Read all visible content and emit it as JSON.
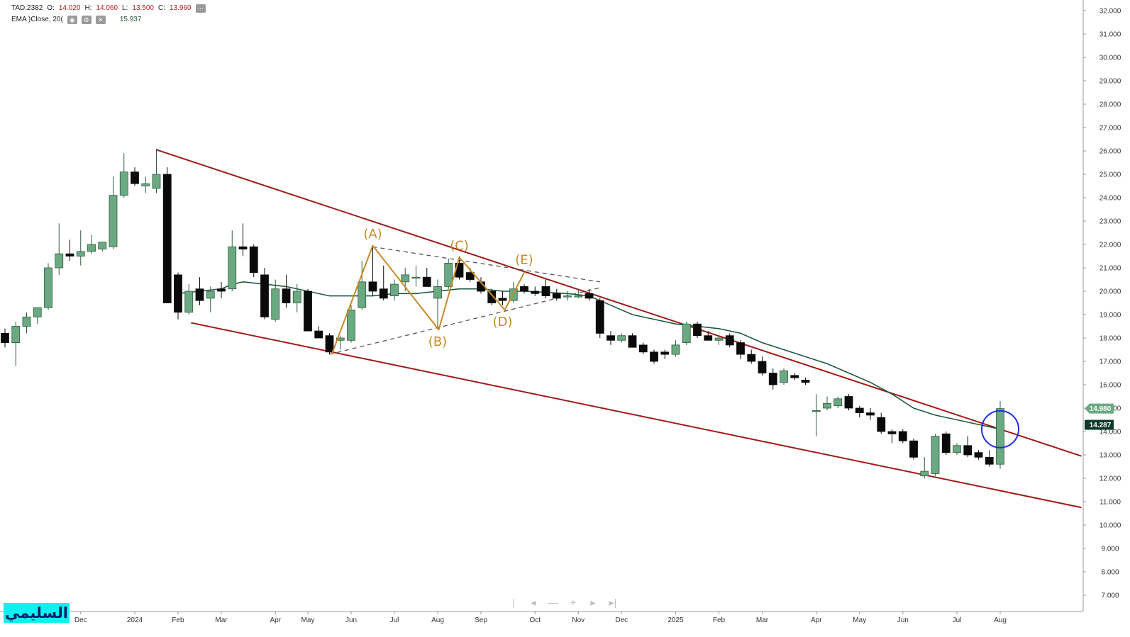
{
  "legend": {
    "symbol": "TAD.2382",
    "open_label": "O:",
    "open": "14.020",
    "high_label": "H:",
    "high": "14.060",
    "low_label": "L:",
    "low": "13.500",
    "close_label": "C:",
    "close": "13.960",
    "ema_label": "EMA )Close, 20(",
    "ema_value": "15.937",
    "more_icon": "ellipsis-icon",
    "eye_icon": "eye-icon",
    "settings_icon": "gear-icon",
    "close_icon": "close-icon"
  },
  "brand_text": "السليمي",
  "nav_icons": [
    "first-page-icon",
    "prev-icon",
    "zoom-out-icon",
    "zoom-in-icon",
    "next-icon",
    "last-page-icon"
  ],
  "colors": {
    "up": "#6aa981",
    "up_border": "#2f5a40",
    "down": "#0a0a0a",
    "ema": "#1e5a3c",
    "trendline": "#a11a1a",
    "pattern": "#c88a26",
    "dashed": "#555555",
    "circle": "#1f2de6"
  },
  "chart_data": {
    "type": "candlestick",
    "title": "",
    "xlabel": "",
    "ylabel": "",
    "ylim": [
      6.4,
      32.3
    ],
    "y_ticks": [
      "32.000",
      "31.000",
      "30.000",
      "29.000",
      "28.000",
      "27.000",
      "26.000",
      "25.000",
      "24.000",
      "23.000",
      "22.000",
      "21.000",
      "20.000",
      "19.000",
      "18.000",
      "17.000",
      "16.000",
      "15.000",
      "14.000",
      "13.000",
      "12.000",
      "11.000",
      "10.000",
      "9.000",
      "8.000",
      "7.000"
    ],
    "x_ticks": [
      {
        "label": "Dec",
        "i": 7
      },
      {
        "label": "2024",
        "i": 12
      },
      {
        "label": "Feb",
        "i": 16
      },
      {
        "label": "Mar",
        "i": 20
      },
      {
        "label": "Apr",
        "i": 25
      },
      {
        "label": "May",
        "i": 28
      },
      {
        "label": "Jun",
        "i": 32
      },
      {
        "label": "Jul",
        "i": 36
      },
      {
        "label": "Aug",
        "i": 40
      },
      {
        "label": "Sep",
        "i": 44
      },
      {
        "label": "Oct",
        "i": 49
      },
      {
        "label": "Nov",
        "i": 53
      },
      {
        "label": "Dec",
        "i": 57
      },
      {
        "label": "2025",
        "i": 62
      },
      {
        "label": "Feb",
        "i": 66
      },
      {
        "label": "Mar",
        "i": 70
      },
      {
        "label": "Apr",
        "i": 75
      },
      {
        "label": "May",
        "i": 79
      },
      {
        "label": "Jun",
        "i": 83
      },
      {
        "label": "Jul",
        "i": 88
      },
      {
        "label": "Aug",
        "i": 92
      }
    ],
    "candles": [
      {
        "i": 0,
        "o": 18.2,
        "h": 18.4,
        "l": 17.6,
        "c": 17.8
      },
      {
        "i": 1,
        "o": 17.8,
        "h": 18.7,
        "l": 16.8,
        "c": 18.5
      },
      {
        "i": 2,
        "o": 18.5,
        "h": 19.1,
        "l": 18.2,
        "c": 18.9
      },
      {
        "i": 3,
        "o": 18.9,
        "h": 19.3,
        "l": 18.6,
        "c": 19.3
      },
      {
        "i": 4,
        "o": 19.3,
        "h": 21.2,
        "l": 19.2,
        "c": 21.0
      },
      {
        "i": 5,
        "o": 21.0,
        "h": 22.9,
        "l": 20.7,
        "c": 21.6
      },
      {
        "i": 6,
        "o": 21.6,
        "h": 22.2,
        "l": 21.3,
        "c": 21.5
      },
      {
        "i": 7,
        "o": 21.5,
        "h": 22.6,
        "l": 21.1,
        "c": 21.7
      },
      {
        "i": 8,
        "o": 21.7,
        "h": 22.4,
        "l": 21.6,
        "c": 22.0
      },
      {
        "i": 9,
        "o": 21.8,
        "h": 22.1,
        "l": 21.7,
        "c": 22.1
      },
      {
        "i": 10,
        "o": 21.9,
        "h": 24.9,
        "l": 21.8,
        "c": 24.1
      },
      {
        "i": 11,
        "o": 24.1,
        "h": 25.9,
        "l": 24.0,
        "c": 25.1
      },
      {
        "i": 12,
        "o": 25.1,
        "h": 25.3,
        "l": 24.5,
        "c": 24.6
      },
      {
        "i": 13,
        "o": 24.5,
        "h": 24.9,
        "l": 24.2,
        "c": 24.6
      },
      {
        "i": 14,
        "o": 24.4,
        "h": 26.1,
        "l": 24.2,
        "c": 25.0
      },
      {
        "i": 15,
        "o": 25.0,
        "h": 25.3,
        "l": 19.7,
        "c": 19.5
      },
      {
        "i": 16,
        "o": 20.7,
        "h": 20.8,
        "l": 18.8,
        "c": 19.1
      },
      {
        "i": 17,
        "o": 19.1,
        "h": 20.3,
        "l": 19.0,
        "c": 20.0
      },
      {
        "i": 18,
        "o": 20.1,
        "h": 20.6,
        "l": 19.4,
        "c": 19.6
      },
      {
        "i": 19,
        "o": 19.7,
        "h": 20.2,
        "l": 19.1,
        "c": 20.0
      },
      {
        "i": 20,
        "o": 20.1,
        "h": 20.4,
        "l": 19.7,
        "c": 20.0
      },
      {
        "i": 21,
        "o": 20.1,
        "h": 22.6,
        "l": 20.0,
        "c": 21.9
      },
      {
        "i": 22,
        "o": 21.9,
        "h": 22.9,
        "l": 21.5,
        "c": 21.8
      },
      {
        "i": 23,
        "o": 21.9,
        "h": 22.0,
        "l": 20.6,
        "c": 20.8
      },
      {
        "i": 24,
        "o": 20.7,
        "h": 21.0,
        "l": 18.8,
        "c": 18.9
      },
      {
        "i": 25,
        "o": 18.8,
        "h": 20.5,
        "l": 18.7,
        "c": 20.1
      },
      {
        "i": 26,
        "o": 20.1,
        "h": 20.7,
        "l": 19.3,
        "c": 19.5
      },
      {
        "i": 27,
        "o": 19.5,
        "h": 20.3,
        "l": 19.1,
        "c": 20.0
      },
      {
        "i": 28,
        "o": 20.0,
        "h": 20.1,
        "l": 18.3,
        "c": 18.3
      },
      {
        "i": 29,
        "o": 18.3,
        "h": 18.5,
        "l": 18.0,
        "c": 18.0
      },
      {
        "i": 30,
        "o": 18.1,
        "h": 18.2,
        "l": 17.3,
        "c": 17.4
      },
      {
        "i": 31,
        "o": 17.9,
        "h": 18.1,
        "l": 17.5,
        "c": 18.0
      },
      {
        "i": 32,
        "o": 17.9,
        "h": 19.4,
        "l": 17.8,
        "c": 19.2
      },
      {
        "i": 33,
        "o": 19.3,
        "h": 21.3,
        "l": 19.2,
        "c": 20.4
      },
      {
        "i": 34,
        "o": 20.4,
        "h": 21.9,
        "l": 19.8,
        "c": 20.0
      },
      {
        "i": 35,
        "o": 20.1,
        "h": 21.1,
        "l": 19.6,
        "c": 19.7
      },
      {
        "i": 36,
        "o": 19.8,
        "h": 20.5,
        "l": 19.6,
        "c": 20.3
      },
      {
        "i": 37,
        "o": 20.4,
        "h": 21.0,
        "l": 20.0,
        "c": 20.7
      },
      {
        "i": 38,
        "o": 20.6,
        "h": 21.1,
        "l": 20.2,
        "c": 20.6
      },
      {
        "i": 39,
        "o": 20.6,
        "h": 21.0,
        "l": 20.2,
        "c": 20.2
      },
      {
        "i": 40,
        "o": 19.7,
        "h": 20.5,
        "l": 18.4,
        "c": 20.2
      },
      {
        "i": 41,
        "o": 20.2,
        "h": 21.4,
        "l": 20.1,
        "c": 21.2
      },
      {
        "i": 42,
        "o": 21.2,
        "h": 21.5,
        "l": 20.5,
        "c": 20.6
      },
      {
        "i": 43,
        "o": 20.8,
        "h": 21.0,
        "l": 20.4,
        "c": 20.5
      },
      {
        "i": 44,
        "o": 20.4,
        "h": 20.6,
        "l": 19.9,
        "c": 20.0
      },
      {
        "i": 45,
        "o": 20.0,
        "h": 20.1,
        "l": 19.4,
        "c": 19.5
      },
      {
        "i": 46,
        "o": 19.7,
        "h": 20.0,
        "l": 19.4,
        "c": 19.6
      },
      {
        "i": 47,
        "o": 19.6,
        "h": 20.4,
        "l": 19.5,
        "c": 20.1
      },
      {
        "i": 48,
        "o": 20.2,
        "h": 20.3,
        "l": 19.9,
        "c": 20.0
      },
      {
        "i": 49,
        "o": 20.0,
        "h": 20.2,
        "l": 19.8,
        "c": 19.9
      },
      {
        "i": 50,
        "o": 20.2,
        "h": 20.5,
        "l": 19.7,
        "c": 19.8
      },
      {
        "i": 51,
        "o": 19.9,
        "h": 20.1,
        "l": 19.6,
        "c": 19.7
      },
      {
        "i": 52,
        "o": 19.8,
        "h": 20.0,
        "l": 19.6,
        "c": 19.8
      },
      {
        "i": 53,
        "o": 19.8,
        "h": 20.1,
        "l": 19.7,
        "c": 19.8
      },
      {
        "i": 54,
        "o": 19.9,
        "h": 20.1,
        "l": 19.6,
        "c": 19.7
      },
      {
        "i": 55,
        "o": 19.6,
        "h": 19.7,
        "l": 18.0,
        "c": 18.2
      },
      {
        "i": 56,
        "o": 18.1,
        "h": 18.3,
        "l": 17.7,
        "c": 17.9
      },
      {
        "i": 57,
        "o": 17.9,
        "h": 18.2,
        "l": 17.8,
        "c": 18.1
      },
      {
        "i": 58,
        "o": 18.1,
        "h": 18.2,
        "l": 17.6,
        "c": 17.6
      },
      {
        "i": 59,
        "o": 17.7,
        "h": 17.8,
        "l": 17.3,
        "c": 17.4
      },
      {
        "i": 60,
        "o": 17.4,
        "h": 17.5,
        "l": 16.9,
        "c": 17.0
      },
      {
        "i": 61,
        "o": 17.4,
        "h": 17.5,
        "l": 17.1,
        "c": 17.3
      },
      {
        "i": 62,
        "o": 17.3,
        "h": 17.9,
        "l": 17.2,
        "c": 17.7
      },
      {
        "i": 63,
        "o": 17.8,
        "h": 18.7,
        "l": 17.7,
        "c": 18.6
      },
      {
        "i": 64,
        "o": 18.6,
        "h": 18.7,
        "l": 18.0,
        "c": 18.1
      },
      {
        "i": 65,
        "o": 18.1,
        "h": 18.3,
        "l": 17.9,
        "c": 17.9
      },
      {
        "i": 66,
        "o": 17.9,
        "h": 18.1,
        "l": 17.7,
        "c": 18.0
      },
      {
        "i": 67,
        "o": 18.1,
        "h": 18.2,
        "l": 17.6,
        "c": 17.7
      },
      {
        "i": 68,
        "o": 17.8,
        "h": 17.9,
        "l": 17.1,
        "c": 17.3
      },
      {
        "i": 69,
        "o": 17.3,
        "h": 17.5,
        "l": 16.9,
        "c": 17.0
      },
      {
        "i": 70,
        "o": 17.0,
        "h": 17.2,
        "l": 16.4,
        "c": 16.5
      },
      {
        "i": 71,
        "o": 16.5,
        "h": 16.7,
        "l": 15.8,
        "c": 16.0
      },
      {
        "i": 72,
        "o": 16.1,
        "h": 16.7,
        "l": 16.0,
        "c": 16.6
      },
      {
        "i": 73,
        "o": 16.4,
        "h": 16.5,
        "l": 16.2,
        "c": 16.3
      },
      {
        "i": 74,
        "o": 16.2,
        "h": 16.3,
        "l": 16.0,
        "c": 16.1
      },
      {
        "i": 75,
        "o": 14.9,
        "h": 15.6,
        "l": 13.8,
        "c": 14.9
      },
      {
        "i": 76,
        "o": 15.0,
        "h": 15.5,
        "l": 14.9,
        "c": 15.2
      },
      {
        "i": 77,
        "o": 15.1,
        "h": 15.5,
        "l": 15.0,
        "c": 15.4
      },
      {
        "i": 78,
        "o": 15.5,
        "h": 15.6,
        "l": 14.9,
        "c": 15.0
      },
      {
        "i": 79,
        "o": 15.0,
        "h": 15.1,
        "l": 14.6,
        "c": 14.8
      },
      {
        "i": 80,
        "o": 14.8,
        "h": 15.0,
        "l": 14.5,
        "c": 14.7
      },
      {
        "i": 81,
        "o": 14.6,
        "h": 14.8,
        "l": 13.9,
        "c": 14.0
      },
      {
        "i": 82,
        "o": 14.0,
        "h": 14.1,
        "l": 13.5,
        "c": 13.9
      },
      {
        "i": 83,
        "o": 14.0,
        "h": 14.1,
        "l": 13.5,
        "c": 13.6
      },
      {
        "i": 84,
        "o": 13.6,
        "h": 13.7,
        "l": 12.8,
        "c": 12.9
      },
      {
        "i": 85,
        "o": 12.1,
        "h": 12.9,
        "l": 12.0,
        "c": 12.3
      },
      {
        "i": 86,
        "o": 12.2,
        "h": 13.9,
        "l": 12.1,
        "c": 13.8
      },
      {
        "i": 87,
        "o": 13.9,
        "h": 14.0,
        "l": 13.0,
        "c": 13.1
      },
      {
        "i": 88,
        "o": 13.1,
        "h": 13.5,
        "l": 13.0,
        "c": 13.4
      },
      {
        "i": 89,
        "o": 13.4,
        "h": 13.8,
        "l": 12.9,
        "c": 13.0
      },
      {
        "i": 90,
        "o": 13.1,
        "h": 13.2,
        "l": 12.8,
        "c": 12.9
      },
      {
        "i": 91,
        "o": 12.9,
        "h": 13.2,
        "l": 12.5,
        "c": 12.6
      },
      {
        "i": 92,
        "o": 12.6,
        "h": 15.3,
        "l": 12.4,
        "c": 14.98
      }
    ],
    "ema": {
      "name": "EMA )Close, 20(",
      "points": [
        [
          16,
          19.9
        ],
        [
          18,
          20.0
        ],
        [
          20,
          20.1
        ],
        [
          21,
          20.3
        ],
        [
          22,
          20.4
        ],
        [
          24,
          20.3
        ],
        [
          26,
          20.2
        ],
        [
          28,
          20.0
        ],
        [
          30,
          19.8
        ],
        [
          32,
          19.8
        ],
        [
          34,
          19.8
        ],
        [
          36,
          19.9
        ],
        [
          38,
          19.9
        ],
        [
          40,
          20.0
        ],
        [
          42,
          20.1
        ],
        [
          44,
          20.1
        ],
        [
          46,
          20.0
        ],
        [
          48,
          20.0
        ],
        [
          50,
          19.95
        ],
        [
          52,
          19.9
        ],
        [
          54,
          19.8
        ],
        [
          56,
          19.4
        ],
        [
          58,
          19.0
        ],
        [
          60,
          18.8
        ],
        [
          62,
          18.6
        ],
        [
          64,
          18.5
        ],
        [
          66,
          18.4
        ],
        [
          68,
          18.2
        ],
        [
          70,
          17.8
        ],
        [
          72,
          17.5
        ],
        [
          74,
          17.2
        ],
        [
          76,
          16.9
        ],
        [
          78,
          16.5
        ],
        [
          80,
          16.1
        ],
        [
          82,
          15.6
        ],
        [
          84,
          15.0
        ],
        [
          86,
          14.7
        ],
        [
          88,
          14.5
        ],
        [
          90,
          14.3
        ],
        [
          92,
          14.1
        ]
      ]
    },
    "trendlines": [
      {
        "name": "upper",
        "from": [
          14,
          26.05
        ],
        "to": [
          99.5,
          12.95
        ]
      },
      {
        "name": "lower",
        "from": [
          17.2,
          18.65
        ],
        "to": [
          99.5,
          10.75
        ]
      }
    ],
    "triangle": {
      "upper": {
        "from": [
          34,
          21.9
        ],
        "to": [
          55,
          20.4
        ]
      },
      "lower": {
        "from": [
          30,
          17.3
        ],
        "to": [
          55,
          20.15
        ]
      }
    },
    "wave_points": [
      {
        "label": "",
        "i": 30.2,
        "v": 17.3
      },
      {
        "label": "(A)",
        "i": 34,
        "v": 21.95
      },
      {
        "label": "(B)",
        "i": 40.1,
        "v": 18.35
      },
      {
        "label": "(C)",
        "i": 42,
        "v": 21.45
      },
      {
        "label": "(D)",
        "i": 46.2,
        "v": 19.2
      },
      {
        "label": "(E)",
        "i": 48,
        "v": 20.8
      }
    ],
    "wave_labels": [
      {
        "label": "(A)",
        "i": 34,
        "v": 22.45
      },
      {
        "label": "(B)",
        "i": 40,
        "v": 17.85
      },
      {
        "label": "(C)",
        "i": 42,
        "v": 21.95
      },
      {
        "label": "(D)",
        "i": 46,
        "v": 18.7
      },
      {
        "label": "(E)",
        "i": 48,
        "v": 21.35
      }
    ],
    "price_labels": [
      {
        "value": "14.980",
        "v": 14.98,
        "style": "last"
      },
      {
        "value": "14.287",
        "v": 14.287,
        "style": "dark"
      }
    ],
    "highlight_circle": {
      "i": 92,
      "v": 14.1
    }
  }
}
